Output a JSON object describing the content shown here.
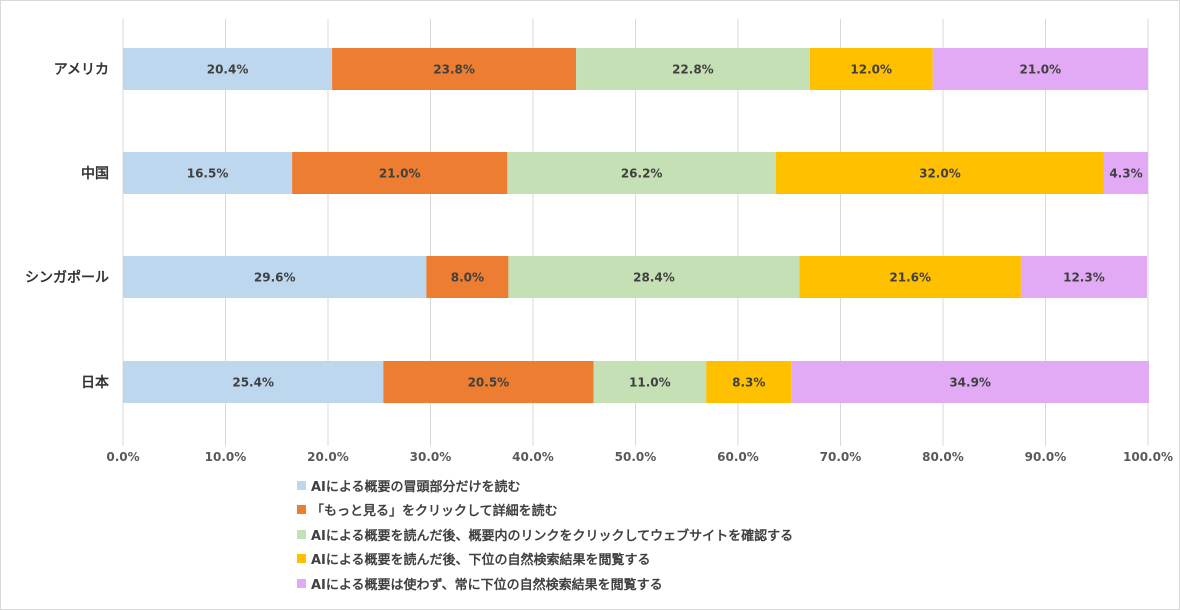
{
  "chart_data": {
    "type": "bar",
    "orientation": "horizontal",
    "stacked": "percent",
    "categories": [
      "アメリカ",
      "中国",
      "シンガポール",
      "日本"
    ],
    "xlim": [
      0,
      100
    ],
    "x_ticks": [
      "0.0%",
      "10.0%",
      "20.0%",
      "30.0%",
      "40.0%",
      "50.0%",
      "60.0%",
      "70.0%",
      "80.0%",
      "90.0%",
      "100.0%"
    ],
    "grid": "vertical",
    "legend_position": "bottom",
    "series": [
      {
        "name": "AIによる概要の冒頭部分だけを読む",
        "color": "#bdd7ee",
        "values": [
          20.4,
          16.5,
          29.6,
          25.4
        ],
        "labels": [
          "20.4%",
          "16.5%",
          "29.6%",
          "25.4%"
        ]
      },
      {
        "name": "「もっと見る」をクリックして詳細を読む",
        "color": "#ed7d31",
        "values": [
          23.8,
          21.0,
          8.0,
          20.5
        ],
        "labels": [
          "23.8%",
          "21.0%",
          "8.0%",
          "20.5%"
        ]
      },
      {
        "name": "AIによる概要を読んだ後、概要内のリンクをクリックしてウェブサイトを確認する",
        "color": "#c5e0b4",
        "values": [
          22.8,
          26.2,
          28.4,
          11.0
        ],
        "labels": [
          "22.8%",
          "26.2%",
          "28.4%",
          "11.0%"
        ]
      },
      {
        "name": "AIによる概要を読んだ後、下位の自然検索結果を閲覧する",
        "color": "#ffc000",
        "values": [
          12.0,
          32.0,
          21.6,
          8.3
        ],
        "labels": [
          "12.0%",
          "32.0%",
          "21.6%",
          "8.3%"
        ]
      },
      {
        "name": "AIによる概要は使わず、常に下位の自然検索結果を閲覧する",
        "color": "#e2aaf5",
        "values": [
          21.0,
          4.3,
          12.3,
          34.9
        ],
        "labels": [
          "21.0%",
          "4.3%",
          "12.3%",
          "34.9%"
        ]
      }
    ]
  }
}
